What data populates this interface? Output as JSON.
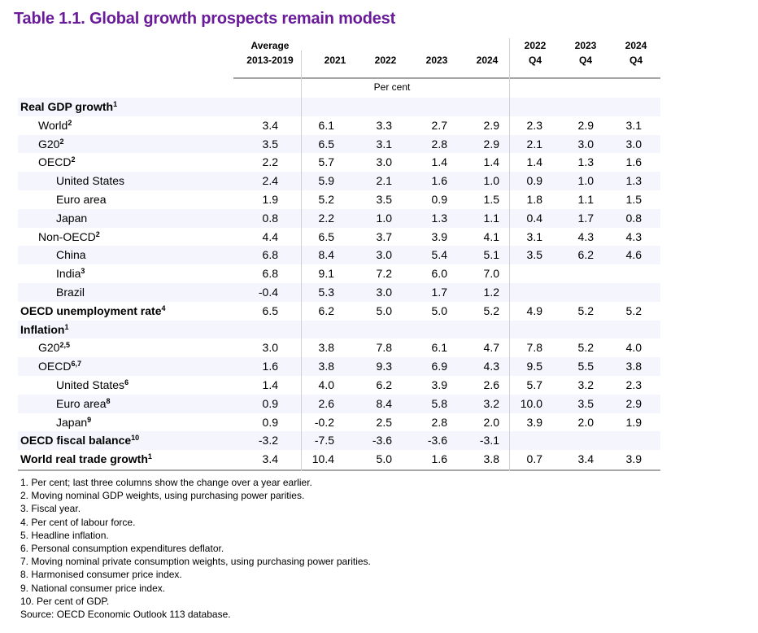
{
  "title": "Table 1.1. Global growth prospects remain modest",
  "headers": [
    {
      "line1": "Average",
      "line2": "2013-2019"
    },
    {
      "line1": "",
      "line2": "2021"
    },
    {
      "line1": "",
      "line2": "2022"
    },
    {
      "line1": "",
      "line2": "2023"
    },
    {
      "line1": "",
      "line2": "2024"
    },
    {
      "line1": "2022",
      "line2": "Q4"
    },
    {
      "line1": "2023",
      "line2": "Q4"
    },
    {
      "line1": "2024",
      "line2": "Q4"
    }
  ],
  "unit_label": "Per cent",
  "rows": [
    {
      "label": "Real GDP growth",
      "sup": "1",
      "level": 0,
      "bold": true,
      "values": [
        "",
        "",
        "",
        "",
        "",
        "",
        "",
        ""
      ]
    },
    {
      "label": "World",
      "sup": "2",
      "level": 1,
      "bold": false,
      "values": [
        "3.4",
        "6.1",
        "3.3",
        "2.7",
        "2.9",
        "2.3",
        "2.9",
        "3.1"
      ]
    },
    {
      "label": "G20",
      "sup": "2",
      "level": 1,
      "bold": false,
      "values": [
        "3.5",
        "6.5",
        "3.1",
        "2.8",
        "2.9",
        "2.1",
        "3.0",
        "3.0"
      ]
    },
    {
      "label": "OECD",
      "sup": "2",
      "level": 1,
      "bold": false,
      "values": [
        "2.2",
        "5.7",
        "3.0",
        "1.4",
        "1.4",
        "1.4",
        "1.3",
        "1.6"
      ]
    },
    {
      "label": "United States",
      "sup": "",
      "level": 2,
      "bold": false,
      "values": [
        "2.4",
        "5.9",
        "2.1",
        "1.6",
        "1.0",
        "0.9",
        "1.0",
        "1.3"
      ]
    },
    {
      "label": "Euro area",
      "sup": "",
      "level": 2,
      "bold": false,
      "values": [
        "1.9",
        "5.2",
        "3.5",
        "0.9",
        "1.5",
        "1.8",
        "1.1",
        "1.5"
      ]
    },
    {
      "label": "Japan",
      "sup": "",
      "level": 2,
      "bold": false,
      "values": [
        "0.8",
        "2.2",
        "1.0",
        "1.3",
        "1.1",
        "0.4",
        "1.7",
        "0.8"
      ]
    },
    {
      "label": "Non-OECD",
      "sup": "2",
      "level": 1,
      "bold": false,
      "values": [
        "4.4",
        "6.5",
        "3.7",
        "3.9",
        "4.1",
        "3.1",
        "4.3",
        "4.3"
      ]
    },
    {
      "label": "China",
      "sup": "",
      "level": 2,
      "bold": false,
      "values": [
        "6.8",
        "8.4",
        "3.0",
        "5.4",
        "5.1",
        "3.5",
        "6.2",
        "4.6"
      ]
    },
    {
      "label": "India",
      "sup": "3",
      "level": 2,
      "bold": false,
      "values": [
        "6.8",
        "9.1",
        "7.2",
        "6.0",
        "7.0",
        "",
        "",
        ""
      ]
    },
    {
      "label": "Brazil",
      "sup": "",
      "level": 2,
      "bold": false,
      "values": [
        "-0.4",
        "5.3",
        "3.0",
        "1.7",
        "1.2",
        "",
        "",
        ""
      ]
    },
    {
      "label": "OECD unemployment rate",
      "sup": "4",
      "level": 0,
      "bold": true,
      "values": [
        "6.5",
        "6.2",
        "5.0",
        "5.0",
        "5.2",
        "4.9",
        "5.2",
        "5.2"
      ]
    },
    {
      "label": "Inflation",
      "sup": "1",
      "level": 0,
      "bold": true,
      "values": [
        "",
        "",
        "",
        "",
        "",
        "",
        "",
        ""
      ]
    },
    {
      "label": "G20",
      "sup": "2,5",
      "level": 1,
      "bold": false,
      "values": [
        "3.0",
        "3.8",
        "7.8",
        "6.1",
        "4.7",
        "7.8",
        "5.2",
        "4.0"
      ]
    },
    {
      "label": "OECD",
      "sup": "6,7",
      "level": 1,
      "bold": false,
      "values": [
        "1.6",
        "3.8",
        "9.3",
        "6.9",
        "4.3",
        "9.5",
        "5.5",
        "3.8"
      ]
    },
    {
      "label": "United States",
      "sup": "6",
      "level": 2,
      "bold": false,
      "values": [
        "1.4",
        "4.0",
        "6.2",
        "3.9",
        "2.6",
        "5.7",
        "3.2",
        "2.3"
      ]
    },
    {
      "label": "Euro area",
      "sup": "8",
      "level": 2,
      "bold": false,
      "values": [
        "0.9",
        "2.6",
        "8.4",
        "5.8",
        "3.2",
        "10.0",
        "3.5",
        "2.9"
      ]
    },
    {
      "label": "Japan",
      "sup": "9",
      "level": 2,
      "bold": false,
      "values": [
        "0.9",
        "-0.2",
        "2.5",
        "2.8",
        "2.0",
        "3.9",
        "2.0",
        "1.9"
      ]
    },
    {
      "label": "OECD fiscal balance",
      "sup": "10",
      "level": 0,
      "bold": true,
      "values": [
        "-3.2",
        "-7.5",
        "-3.6",
        "-3.6",
        "-3.1",
        "",
        "",
        ""
      ]
    },
    {
      "label": "World real trade growth",
      "sup": "1",
      "level": 0,
      "bold": true,
      "values": [
        "3.4",
        "10.4",
        "5.0",
        "1.6",
        "3.8",
        "0.7",
        "3.4",
        "3.9"
      ]
    }
  ],
  "notes": [
    "1.  Per cent; last three columns show the change over a year earlier.",
    "2.  Moving nominal GDP weights, using purchasing power parities.",
    "3.  Fiscal year.",
    "4.  Per cent of labour force.",
    "5.  Headline inflation.",
    "6.  Personal consumption expenditures deflator.",
    "7.  Moving nominal private consumption weights, using purchasing power parities.",
    "8.  Harmonised consumer price index.",
    "9.  National consumer price index.",
    "10.  Per cent of GDP."
  ],
  "source": "Source: OECD Economic Outlook 113 database.",
  "colors": {
    "title": "#6a1b9a",
    "row_shade": "#f4f5fd",
    "rule": "#a6a6a6"
  }
}
